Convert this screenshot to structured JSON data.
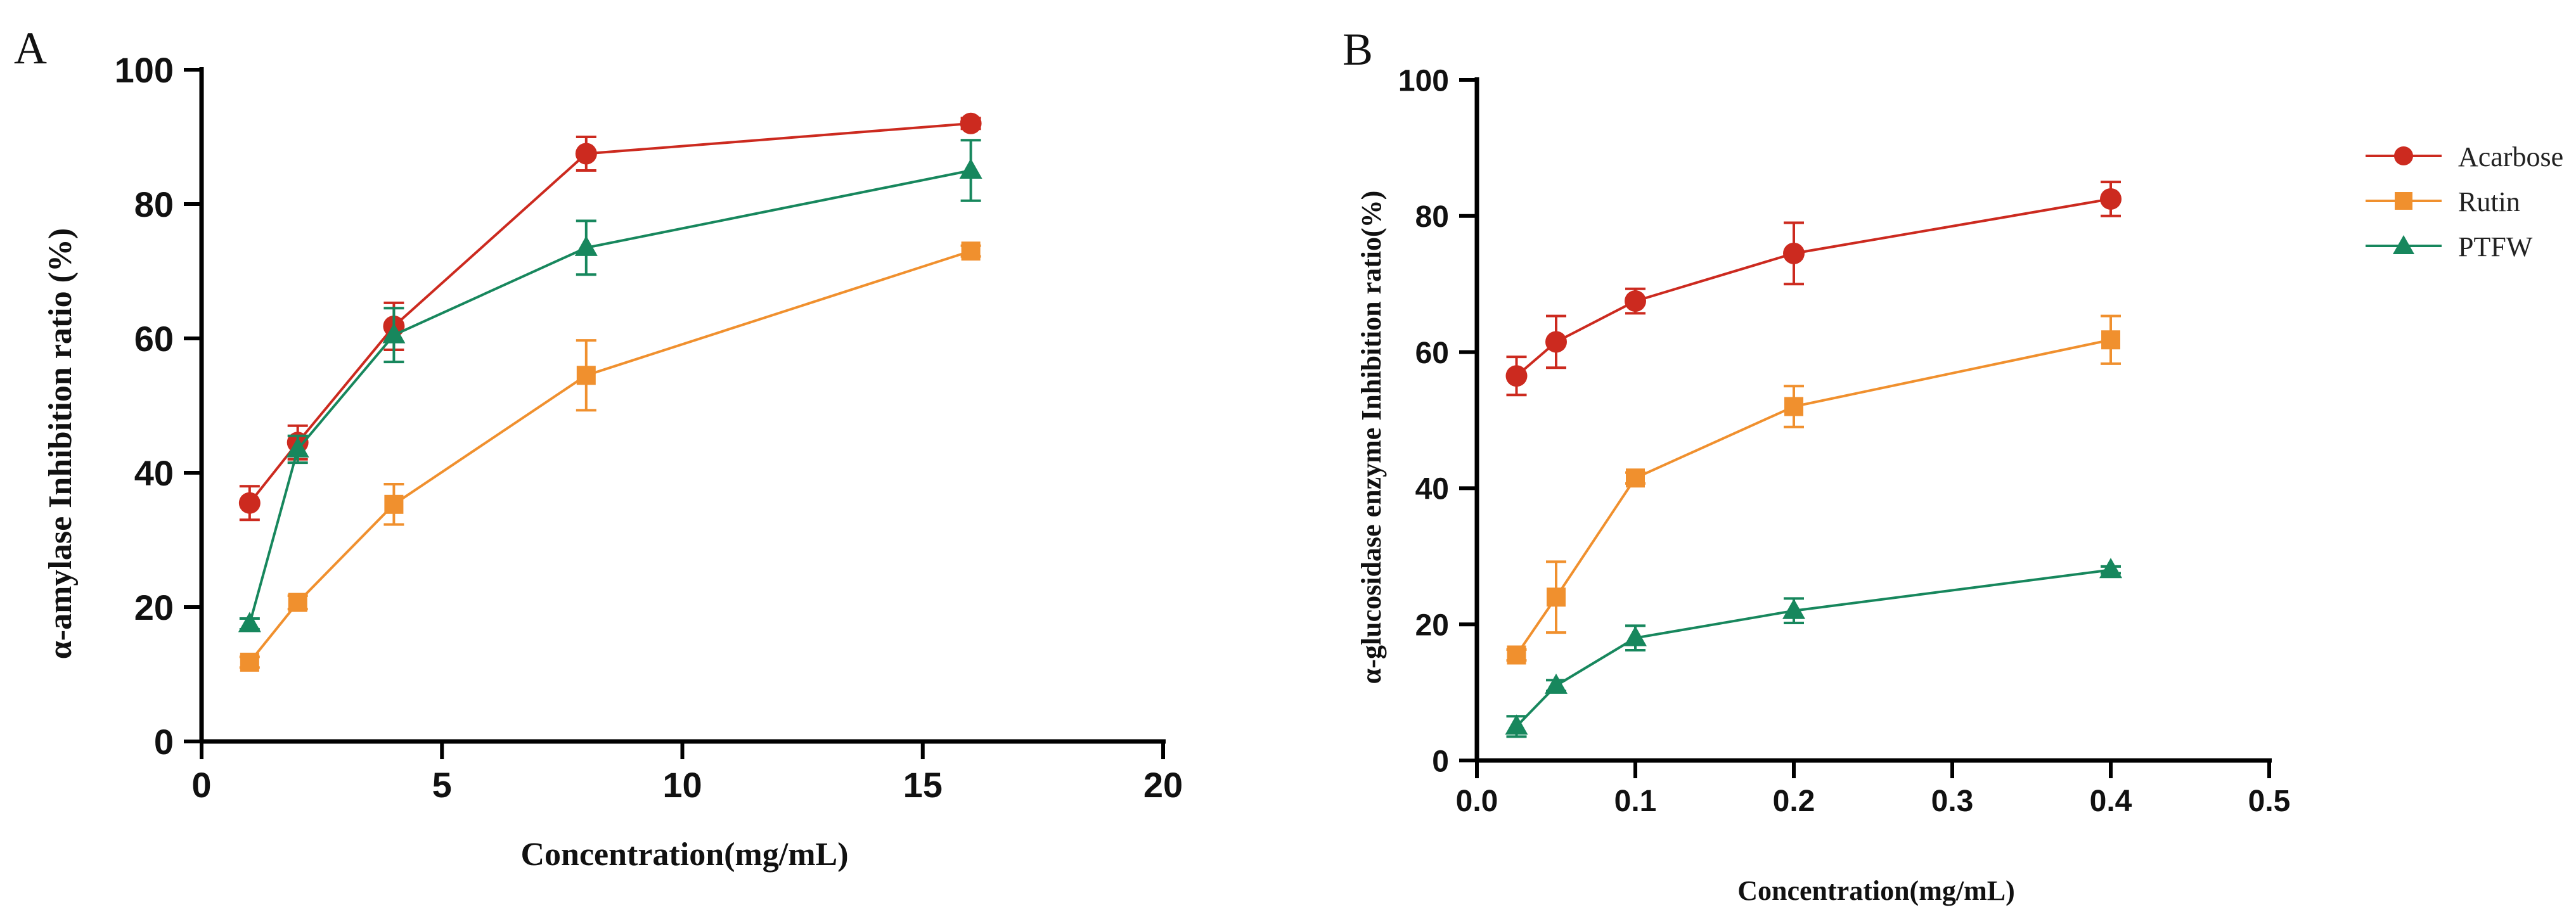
{
  "chart_data": [
    {
      "type": "line",
      "panel_label": "A",
      "title": "",
      "xlabel": "Concentration(mg/mL)",
      "ylabel": "α-amylase Inhibition ratio (%)",
      "xlim": [
        0,
        20
      ],
      "ylim": [
        0,
        100
      ],
      "xticks": [
        0,
        5,
        10,
        15,
        20
      ],
      "yticks": [
        0,
        20,
        40,
        60,
        80,
        100
      ],
      "xtick_labels": [
        "0",
        "5",
        "10",
        "15",
        "20"
      ],
      "ytick_labels": [
        "0",
        "20",
        "40",
        "60",
        "80",
        "100"
      ],
      "x": [
        1,
        2,
        4,
        8,
        16
      ],
      "series": [
        {
          "name": "Acarbose",
          "color": "#cc2a1f",
          "marker": "circle",
          "values": [
            35.5,
            44.5,
            61.8,
            87.5,
            92.0
          ],
          "errors": [
            2.5,
            2.5,
            3.5,
            2.5,
            0.8
          ]
        },
        {
          "name": "Rutin",
          "color": "#f0902e",
          "marker": "square",
          "values": [
            11.8,
            20.7,
            35.3,
            54.5,
            73.0
          ],
          "errors": [
            0.8,
            1.0,
            3.0,
            5.2,
            0.8
          ]
        },
        {
          "name": "PTFW",
          "color": "#17875d",
          "marker": "triangle",
          "values": [
            17.5,
            43.5,
            60.5,
            73.5,
            85.0
          ],
          "errors": [
            0.8,
            2.0,
            4.0,
            4.0,
            4.5
          ]
        }
      ],
      "grid": false,
      "legend": "none"
    },
    {
      "type": "line",
      "panel_label": "B",
      "title": "",
      "xlabel": "Concentration(mg/mL)",
      "ylabel": "α-glucosidase enzyme Inhibition ratio(%)",
      "xlim": [
        0,
        0.5
      ],
      "ylim": [
        0,
        100
      ],
      "xticks": [
        0,
        0.1,
        0.2,
        0.3,
        0.4,
        0.5
      ],
      "yticks": [
        0,
        20,
        40,
        60,
        80,
        100
      ],
      "xtick_labels": [
        "0.0",
        "0.1",
        "0.2",
        "0.3",
        "0.4",
        "0.5"
      ],
      "ytick_labels": [
        "0",
        "20",
        "40",
        "60",
        "80",
        "100"
      ],
      "x": [
        0.025,
        0.05,
        0.1,
        0.2,
        0.4
      ],
      "series": [
        {
          "name": "Acarbose",
          "color": "#cc2a1f",
          "marker": "circle",
          "values": [
            56.5,
            61.5,
            67.5,
            74.5,
            82.5
          ],
          "errors": [
            2.8,
            3.8,
            1.8,
            4.5,
            2.5
          ]
        },
        {
          "name": "Rutin",
          "color": "#f0902e",
          "marker": "square",
          "values": [
            15.5,
            24.0,
            41.5,
            52.0,
            61.8
          ],
          "errors": [
            0.8,
            5.2,
            0.8,
            3.0,
            3.5
          ]
        },
        {
          "name": "PTFW",
          "color": "#17875d",
          "marker": "triangle",
          "values": [
            5.0,
            11.0,
            18.0,
            22.0,
            28.0
          ],
          "errors": [
            1.5,
            0.8,
            1.8,
            1.8,
            0.5
          ]
        }
      ],
      "grid": false,
      "legend": "top-right"
    }
  ]
}
